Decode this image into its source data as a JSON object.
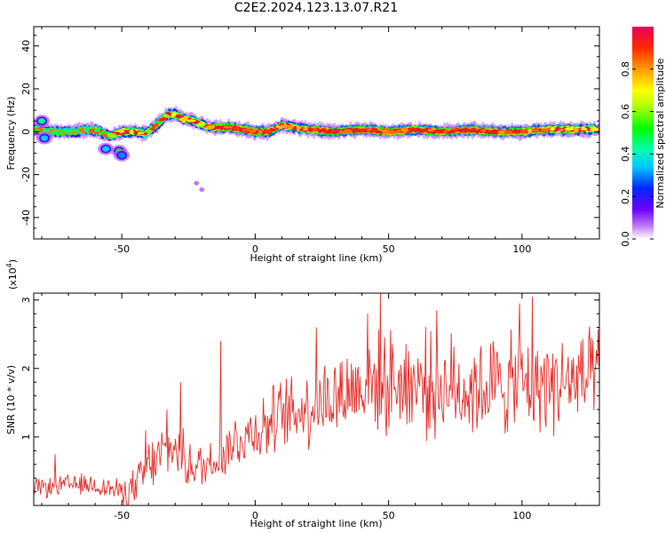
{
  "title": "C2E2.2024.123.13.07.R21",
  "colors": {
    "snr_line": "#e8302c",
    "frame": "#000000",
    "background": "#ffffff"
  },
  "chart_data": [
    {
      "type": "heatmap",
      "name": "spectrogram",
      "xlabel": "Height of straight line (km)",
      "ylabel": "Frequency (Hz)",
      "xlim": [
        -83,
        129
      ],
      "ylim": [
        -50,
        49
      ],
      "x_ticks": [
        -50,
        0,
        50,
        100
      ],
      "x_tick_labels": [
        "-50",
        "0",
        "50",
        "100"
      ],
      "y_ticks": [
        -40,
        -20,
        0,
        20,
        40
      ],
      "y_tick_labels": [
        "-40",
        "-20",
        "0",
        "20",
        "40"
      ],
      "grid": false,
      "ridge": {
        "x": [
          -83,
          -75,
          -68,
          -62,
          -58,
          -55,
          -50,
          -45,
          -41,
          -37,
          -33,
          -30,
          -27,
          -23,
          -19,
          -15,
          -10,
          -5,
          0,
          5,
          10,
          15,
          20,
          30,
          40,
          50,
          60,
          70,
          80,
          90,
          100,
          110,
          120,
          129
        ],
        "frequency": [
          1,
          0,
          0,
          1,
          0,
          -2,
          0,
          0,
          -1,
          3,
          8,
          8,
          6,
          5,
          3,
          2,
          2,
          1,
          0,
          0,
          3,
          2,
          1,
          0,
          1,
          0,
          1,
          0,
          1,
          0,
          0,
          1,
          1,
          1
        ],
        "amplitude": [
          0.45,
          0.4,
          0.4,
          0.45,
          0.5,
          0.45,
          0.65,
          0.7,
          0.6,
          0.45,
          0.55,
          0.6,
          0.75,
          0.7,
          0.65,
          0.8,
          0.85,
          0.8,
          0.9,
          0.8,
          0.75,
          0.7,
          0.8,
          0.85,
          0.85,
          0.85,
          0.8,
          0.85,
          0.9,
          0.85,
          0.8,
          0.75,
          0.7,
          0.6
        ]
      },
      "blobs": [
        {
          "x": -56,
          "frequency": -8,
          "amplitude": 0.35
        },
        {
          "x": -51,
          "frequency": -9,
          "amplitude": 0.5
        },
        {
          "x": -50,
          "frequency": -11,
          "amplitude": 0.3
        },
        {
          "x": -79,
          "frequency": -3,
          "amplitude": 0.35
        },
        {
          "x": -80,
          "frequency": 5,
          "amplitude": 0.45
        },
        {
          "x": -22,
          "frequency": -24,
          "amplitude": 0.08
        },
        {
          "x": -20,
          "frequency": -27,
          "amplitude": 0.08
        }
      ]
    },
    {
      "type": "colorbar",
      "name": "colorbar",
      "label": "Normalized spectral amplitude",
      "range": [
        0,
        1
      ],
      "ticks": [
        0.0,
        0.2,
        0.4,
        0.6,
        0.8
      ],
      "tick_labels": [
        "0.0",
        "0.2",
        "0.4",
        "0.6",
        "0.8"
      ]
    },
    {
      "type": "line",
      "name": "snr",
      "xlabel": "Height of straight line (km)",
      "ylabel": "SNR (10 * v/v)",
      "multiplier_label": "(x10",
      "multiplier_exponent": "4",
      "multiplier_close": ")",
      "xlim": [
        -83,
        129
      ],
      "ylim": [
        0,
        3.1
      ],
      "x_ticks": [
        -50,
        0,
        50,
        100
      ],
      "x_tick_labels": [
        "-50",
        "0",
        "50",
        "100"
      ],
      "y_ticks": [
        1,
        2,
        3
      ],
      "y_tick_labels": [
        "1",
        "2",
        "3"
      ],
      "grid": false,
      "trend_x": [
        -83,
        -70,
        -60,
        -50,
        -45,
        -40,
        -35,
        -30,
        -25,
        -20,
        -15,
        -10,
        -5,
        0,
        10,
        20,
        30,
        40,
        50,
        60,
        70,
        80,
        90,
        100,
        110,
        120,
        129
      ],
      "trend_y": [
        0.25,
        0.3,
        0.3,
        0.2,
        0.25,
        0.55,
        0.75,
        0.85,
        0.6,
        0.55,
        0.7,
        0.85,
        1.0,
        1.1,
        1.3,
        1.45,
        1.6,
        1.75,
        1.8,
        1.8,
        1.75,
        1.7,
        1.75,
        1.75,
        1.8,
        1.8,
        1.85
      ],
      "noise_x": [
        -83,
        -50,
        -40,
        -20,
        0,
        30,
        60,
        129
      ],
      "noise_amp": [
        0.12,
        0.15,
        0.35,
        0.3,
        0.4,
        0.55,
        0.65,
        0.6
      ],
      "peaks": [
        {
          "x": 47,
          "y": 3.1
        },
        {
          "x": 104,
          "y": 3.05
        },
        {
          "x": 99,
          "y": 2.95
        },
        {
          "x": 68,
          "y": 2.85
        },
        {
          "x": 42,
          "y": 2.8
        },
        {
          "x": 23,
          "y": 2.6
        },
        {
          "x": -13,
          "y": 2.4
        },
        {
          "x": -28,
          "y": 1.8
        },
        {
          "x": -33,
          "y": 1.4
        },
        {
          "x": -41,
          "y": 1.1
        },
        {
          "x": -75,
          "y": 0.75
        }
      ]
    }
  ]
}
